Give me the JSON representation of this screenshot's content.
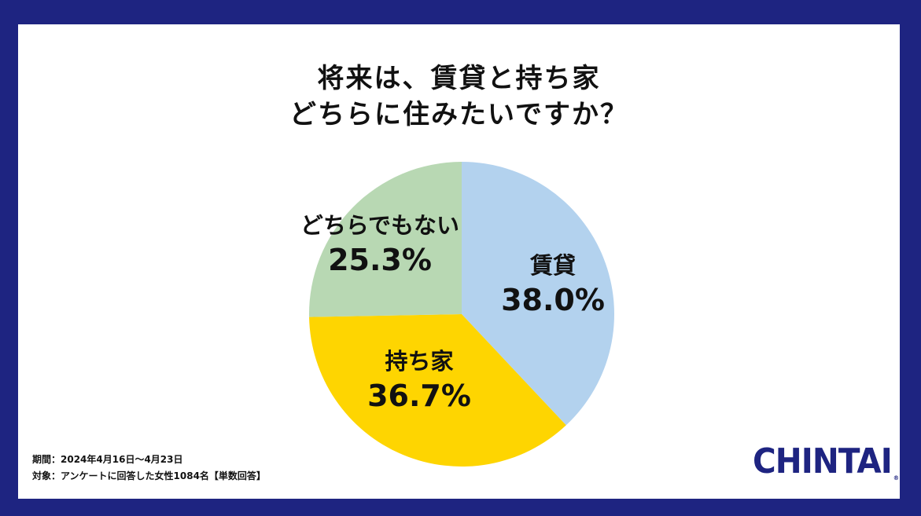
{
  "title": {
    "line1": "将来は、賃貸と持ち家",
    "line2": "どちらに住みたいですか？"
  },
  "chart_data": {
    "type": "pie",
    "title": "将来は、賃貸と持ち家どちらに住みたいですか？",
    "slices": [
      {
        "name": "賃貸",
        "value": 38.0,
        "label": "38.0%",
        "color": "#b3d2ee"
      },
      {
        "name": "持ち家",
        "value": 36.7,
        "label": "36.7%",
        "color": "#fed501"
      },
      {
        "name": "どちらでもない",
        "value": 25.3,
        "label": "25.3%",
        "color": "#b8d8b3"
      }
    ]
  },
  "notes": {
    "period": "期間：2024年4月16日～4月23日",
    "target": "対象：アンケートに回答した女性1084名【単数回答】"
  },
  "logo": {
    "text": "CHINTAI",
    "mark": "®",
    "color": "#1e2481"
  },
  "colors": {
    "frame": "#1e2481",
    "background": "#ffffff"
  }
}
